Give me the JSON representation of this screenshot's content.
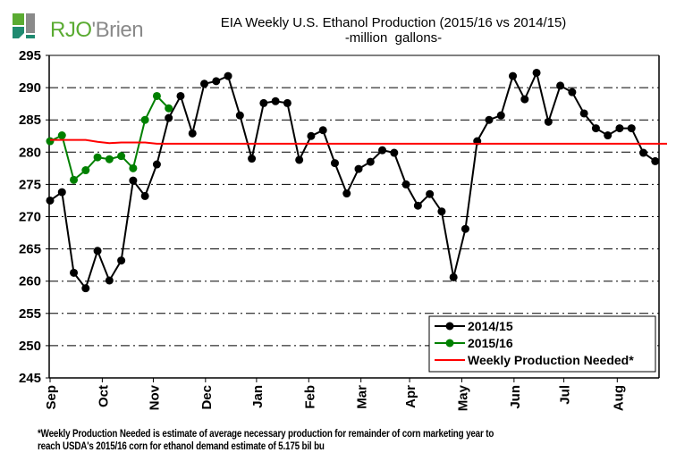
{
  "logo": {
    "brand_part1": "RJO",
    "brand_part2": "'Brien",
    "colors": {
      "green": "#5aab32",
      "teal": "#1f8a70",
      "gray": "#8a8a8a"
    }
  },
  "footnote": {
    "line1": "*Weekly Production Needed is estimate of average necessary production for remainder of corn marketing year to",
    "line2": "reach USDA's 2015/16 corn for ethanol demand estimate of 5.175 bil bu"
  },
  "chart_data": {
    "type": "line",
    "title": "EIA Weekly U.S. Ethanol Production (2015/16 vs 2014/15)",
    "subtitle": "-million  gallons-",
    "xlabel": "",
    "ylabel": "",
    "ylim": [
      245,
      295
    ],
    "yticks": [
      245,
      250,
      255,
      260,
      265,
      270,
      275,
      280,
      285,
      290,
      295
    ],
    "xtick_labels": [
      "Sep",
      "Oct",
      "Nov",
      "Dec",
      "Jan",
      "Feb",
      "Mar",
      "Apr",
      "May",
      "Jun",
      "Jul",
      "Aug"
    ],
    "xtick_weeks": [
      0,
      4.4,
      8.7,
      13.1,
      17.4,
      21.8,
      26.2,
      30.3,
      34.7,
      39.1,
      43.3,
      47.8
    ],
    "x_weeks_range": [
      0,
      51.2
    ],
    "grid": "horizontal dash-dot",
    "legend_position": "bottom-right",
    "series": [
      {
        "name": "2014/15",
        "color": "#000000",
        "marker": "circle",
        "values": [
          272.5,
          273.8,
          261.3,
          258.9,
          264.7,
          260.1,
          263.2,
          275.6,
          273.2,
          278.1,
          285.3,
          288.7,
          282.9,
          290.6,
          291.0,
          291.8,
          285.7,
          279.0,
          287.6,
          287.9,
          287.6,
          278.8,
          282.5,
          283.4,
          278.3,
          273.6,
          277.4,
          278.5,
          280.3,
          279.9,
          275.0,
          271.7,
          273.5,
          270.8,
          260.6,
          268.1,
          281.7,
          285.0,
          285.7,
          291.8,
          288.2,
          292.3,
          284.7,
          290.3,
          289.3,
          286.0,
          283.7,
          282.6,
          283.7,
          283.7,
          279.9,
          278.6
        ]
      },
      {
        "name": "2015/16",
        "color": "#008000",
        "marker": "circle",
        "values": [
          281.7,
          282.6,
          275.7,
          277.2,
          279.2,
          278.9,
          279.4,
          277.5,
          285.0,
          288.7,
          286.8
        ]
      },
      {
        "name": "Weekly Production Needed*",
        "color": "#ff0000",
        "marker": "none",
        "values": [
          281.9,
          281.9,
          281.9,
          281.9,
          281.6,
          281.4,
          281.5,
          281.5,
          281.5,
          281.3,
          281.3,
          281.3,
          281.3,
          281.3,
          281.3,
          281.3,
          281.3,
          281.3,
          281.3,
          281.3,
          281.3,
          281.3,
          281.3,
          281.3,
          281.3,
          281.3,
          281.3,
          281.3,
          281.3,
          281.3,
          281.3,
          281.3,
          281.3,
          281.3,
          281.3,
          281.3,
          281.3,
          281.3,
          281.3,
          281.3,
          281.3,
          281.3,
          281.3,
          281.3,
          281.3,
          281.3,
          281.3,
          281.3,
          281.3,
          281.3,
          281.3,
          281.3,
          281.3
        ]
      }
    ]
  }
}
